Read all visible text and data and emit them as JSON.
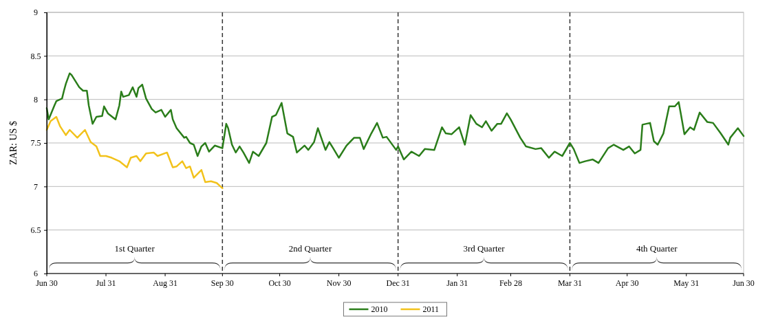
{
  "chart_data": {
    "type": "line",
    "ylabel": "ZAR: US $",
    "xlim": [
      "2010-06-30",
      "2011-06-30"
    ],
    "ylim": [
      6,
      9
    ],
    "xticks": [
      {
        "value": "2010-06-30",
        "label": "Jun 30"
      },
      {
        "value": "2010-07-31",
        "label": "Jul 31"
      },
      {
        "value": "2010-08-31",
        "label": "Aug 31"
      },
      {
        "value": "2010-09-30",
        "label": "Sep 30"
      },
      {
        "value": "2010-10-30",
        "label": "Oct 30"
      },
      {
        "value": "2010-11-30",
        "label": "Nov 30"
      },
      {
        "value": "2010-12-31",
        "label": "Dec 31"
      },
      {
        "value": "2011-01-31",
        "label": "Jan 31"
      },
      {
        "value": "2011-02-28",
        "label": "Feb 28"
      },
      {
        "value": "2011-03-31",
        "label": "Mar 31"
      },
      {
        "value": "2011-04-30",
        "label": "Apr 30"
      },
      {
        "value": "2011-05-31",
        "label": "May 31"
      },
      {
        "value": "2011-06-30",
        "label": "Jun 30"
      }
    ],
    "yticks": [
      6,
      6.5,
      7,
      7.5,
      8,
      8.5,
      9
    ],
    "grid": "y",
    "legend": "bottom",
    "marker": "none",
    "line_style": "solid",
    "ref_lines": [
      {
        "axis": "x",
        "value": "2010-09-30",
        "line_style": "dashed",
        "color": "#333333"
      },
      {
        "axis": "x",
        "value": "2010-12-31",
        "line_style": "dashed",
        "color": "#333333"
      },
      {
        "axis": "x",
        "value": "2011-03-31",
        "line_style": "dashed",
        "color": "#333333"
      }
    ],
    "annotations": [
      "1st Quarter",
      "2nd Quarter",
      "3rd Quarter",
      "4th Quarter"
    ],
    "series": [
      {
        "name": "2010",
        "color": "#2a7d1a",
        "x": [
          "2010-06-30",
          "2010-07-01",
          "2010-07-04",
          "2010-07-05",
          "2010-07-08",
          "2010-07-09",
          "2010-07-10",
          "2010-07-12",
          "2010-07-13",
          "2010-07-17",
          "2010-07-19",
          "2010-07-21",
          "2010-07-22",
          "2010-07-24",
          "2010-07-26",
          "2010-07-29",
          "2010-07-30",
          "2010-08-01",
          "2010-08-05",
          "2010-08-07",
          "2010-08-08",
          "2010-08-09",
          "2010-08-12",
          "2010-08-14",
          "2010-08-16",
          "2010-08-17",
          "2010-08-19",
          "2010-08-21",
          "2010-08-24",
          "2010-08-26",
          "2010-08-29",
          "2010-08-31",
          "2010-09-03",
          "2010-09-04",
          "2010-09-06",
          "2010-09-10",
          "2010-09-11",
          "2010-09-13",
          "2010-09-15",
          "2010-09-17",
          "2010-09-19",
          "2010-09-21",
          "2010-09-23",
          "2010-09-26",
          "2010-09-30",
          "2010-10-02",
          "2010-10-03",
          "2010-10-05",
          "2010-10-07",
          "2010-10-09",
          "2010-10-11",
          "2010-10-14",
          "2010-10-16",
          "2010-10-19",
          "2010-10-23",
          "2010-10-26",
          "2010-10-28",
          "2010-10-31",
          "2010-11-03",
          "2010-11-06",
          "2010-11-08",
          "2010-11-12",
          "2010-11-14",
          "2010-11-17",
          "2010-11-19",
          "2010-11-23",
          "2010-11-25",
          "2010-11-27",
          "2010-11-30",
          "2010-12-04",
          "2010-12-08",
          "2010-12-11",
          "2010-12-13",
          "2010-12-17",
          "2010-12-20",
          "2010-12-23",
          "2010-12-25",
          "2010-12-30",
          "2010-12-31",
          "2011-01-03",
          "2011-01-07",
          "2011-01-11",
          "2011-01-14",
          "2011-01-19",
          "2011-01-23",
          "2011-01-25",
          "2011-01-28",
          "2011-02-01",
          "2011-02-04",
          "2011-02-07",
          "2011-02-10",
          "2011-02-13",
          "2011-02-15",
          "2011-02-18",
          "2011-02-21",
          "2011-02-23",
          "2011-02-26",
          "2011-02-28",
          "2011-03-05",
          "2011-03-08",
          "2011-03-13",
          "2011-03-16",
          "2011-03-20",
          "2011-03-23",
          "2011-03-27",
          "2011-03-31",
          "2011-04-02",
          "2011-04-05",
          "2011-04-08",
          "2011-04-12",
          "2011-04-15",
          "2011-04-20",
          "2011-04-23",
          "2011-04-28",
          "2011-05-01",
          "2011-05-04",
          "2011-05-07",
          "2011-05-08",
          "2011-05-12",
          "2011-05-14",
          "2011-05-16",
          "2011-05-19",
          "2011-05-22",
          "2011-05-25",
          "2011-05-27",
          "2011-05-28",
          "2011-05-30",
          "2011-06-02",
          "2011-06-04",
          "2011-06-07",
          "2011-06-11",
          "2011-06-14",
          "2011-06-18",
          "2011-06-22",
          "2011-06-23",
          "2011-06-27",
          "2011-06-30"
        ],
        "values": [
          7.9,
          7.77,
          7.93,
          7.98,
          8.01,
          8.1,
          8.18,
          8.3,
          8.28,
          8.14,
          8.1,
          8.1,
          7.93,
          7.72,
          7.8,
          7.81,
          7.92,
          7.84,
          7.77,
          7.93,
          8.09,
          8.03,
          8.05,
          8.14,
          8.03,
          8.13,
          8.17,
          8.01,
          7.89,
          7.85,
          7.88,
          7.8,
          7.88,
          7.77,
          7.67,
          7.56,
          7.57,
          7.5,
          7.48,
          7.35,
          7.46,
          7.5,
          7.4,
          7.47,
          7.44,
          7.72,
          7.67,
          7.48,
          7.39,
          7.46,
          7.39,
          7.27,
          7.4,
          7.35,
          7.5,
          7.8,
          7.82,
          7.96,
          7.61,
          7.57,
          7.39,
          7.47,
          7.42,
          7.51,
          7.67,
          7.42,
          7.51,
          7.44,
          7.33,
          7.47,
          7.56,
          7.56,
          7.43,
          7.61,
          7.73,
          7.56,
          7.57,
          7.42,
          7.46,
          7.31,
          7.4,
          7.35,
          7.43,
          7.42,
          7.68,
          7.61,
          7.6,
          7.68,
          7.48,
          7.82,
          7.72,
          7.68,
          7.75,
          7.64,
          7.72,
          7.72,
          7.84,
          7.77,
          7.56,
          7.46,
          7.43,
          7.44,
          7.33,
          7.4,
          7.35,
          7.5,
          7.43,
          7.27,
          7.29,
          7.31,
          7.27,
          7.44,
          7.48,
          7.42,
          7.46,
          7.38,
          7.42,
          7.71,
          7.73,
          7.52,
          7.48,
          7.61,
          7.92,
          7.92,
          7.97,
          7.85,
          7.6,
          7.68,
          7.65,
          7.85,
          7.74,
          7.73,
          7.61,
          7.48,
          7.56,
          7.67,
          7.58
        ]
      },
      {
        "name": "2011",
        "color": "#f2c21b",
        "x": [
          "2010-06-30",
          "2010-07-02",
          "2010-07-05",
          "2010-07-07",
          "2010-07-10",
          "2010-07-12",
          "2010-07-16",
          "2010-07-20",
          "2010-07-23",
          "2010-07-26",
          "2010-07-28",
          "2010-07-31",
          "2010-08-03",
          "2010-08-07",
          "2010-08-11",
          "2010-08-13",
          "2010-08-16",
          "2010-08-18",
          "2010-08-21",
          "2010-08-25",
          "2010-08-27",
          "2010-09-01",
          "2010-09-04",
          "2010-09-06",
          "2010-09-09",
          "2010-09-11",
          "2010-09-13",
          "2010-09-15",
          "2010-09-19",
          "2010-09-21",
          "2010-09-24",
          "2010-09-27",
          "2010-09-30"
        ],
        "values": [
          7.65,
          7.75,
          7.8,
          7.69,
          7.59,
          7.65,
          7.56,
          7.65,
          7.51,
          7.46,
          7.35,
          7.35,
          7.33,
          7.29,
          7.22,
          7.33,
          7.35,
          7.29,
          7.38,
          7.39,
          7.35,
          7.39,
          7.22,
          7.23,
          7.29,
          7.21,
          7.23,
          7.1,
          7.19,
          7.05,
          7.06,
          7.04,
          6.98
        ]
      }
    ]
  }
}
